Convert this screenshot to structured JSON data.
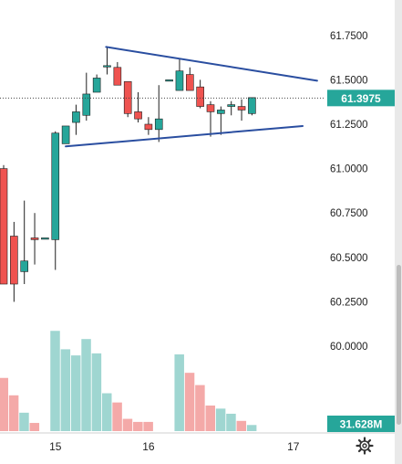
{
  "chart_data": {
    "type": "candlestick",
    "price_axis": {
      "ticks": [
        "61.7500",
        "61.5000",
        "61.2500",
        "61.0000",
        "60.7500",
        "60.5000",
        "60.2500",
        "60.0000"
      ],
      "range": [
        59.81,
        61.79
      ]
    },
    "time_axis": {
      "labels": [
        {
          "text": "15",
          "bar": 5
        },
        {
          "text": "16",
          "bar": 14
        },
        {
          "text": "17",
          "bar": 28
        }
      ]
    },
    "last_price": {
      "text": "61.3975",
      "value": 61.3975,
      "color": "#26a69a"
    },
    "volume_badge": {
      "text": "31.628M",
      "color": "#26a69a"
    },
    "candles": [
      {
        "o": 61.0,
        "h": 61.02,
        "l": 60.35,
        "c": 60.35
      },
      {
        "o": 60.62,
        "h": 60.7,
        "l": 60.25,
        "c": 60.35
      },
      {
        "o": 60.42,
        "h": 60.82,
        "l": 60.35,
        "c": 60.48
      },
      {
        "o": 60.61,
        "h": 60.75,
        "l": 60.46,
        "c": 60.6
      },
      {
        "o": 60.61,
        "h": 60.61,
        "l": 60.61,
        "c": 60.61
      },
      {
        "o": 60.6,
        "h": 61.21,
        "l": 60.43,
        "c": 61.2
      },
      {
        "o": 61.14,
        "h": 61.24,
        "l": 61.14,
        "c": 61.24
      },
      {
        "o": 61.26,
        "h": 61.36,
        "l": 61.19,
        "c": 61.32
      },
      {
        "o": 61.3,
        "h": 61.54,
        "l": 61.27,
        "c": 61.42
      },
      {
        "o": 61.43,
        "h": 61.53,
        "l": 61.43,
        "c": 61.51
      },
      {
        "o": 61.58,
        "h": 61.68,
        "l": 61.53,
        "c": 61.58
      },
      {
        "o": 61.57,
        "h": 61.6,
        "l": 61.48,
        "c": 61.47
      },
      {
        "o": 61.49,
        "h": 61.49,
        "l": 61.29,
        "c": 61.31
      },
      {
        "o": 61.32,
        "h": 61.43,
        "l": 61.26,
        "c": 61.28
      },
      {
        "o": 61.25,
        "h": 61.29,
        "l": 61.19,
        "c": 61.22
      },
      {
        "o": 61.22,
        "h": 61.47,
        "l": 61.15,
        "c": 61.28
      },
      {
        "o": 61.5,
        "h": 61.5,
        "l": 61.5,
        "c": 61.5
      },
      {
        "o": 61.44,
        "h": 61.62,
        "l": 61.44,
        "c": 61.55
      },
      {
        "o": 61.53,
        "h": 61.57,
        "l": 61.44,
        "c": 61.44
      },
      {
        "o": 61.46,
        "h": 61.5,
        "l": 61.34,
        "c": 61.35
      },
      {
        "o": 61.36,
        "h": 61.38,
        "l": 61.18,
        "c": 61.32
      },
      {
        "o": 61.31,
        "h": 61.35,
        "l": 61.19,
        "c": 61.33
      },
      {
        "o": 61.35,
        "h": 61.38,
        "l": 61.3,
        "c": 61.36
      },
      {
        "o": 61.35,
        "h": 61.39,
        "l": 61.27,
        "c": 61.33
      },
      {
        "o": 61.31,
        "h": 61.4,
        "l": 61.3,
        "c": 61.4
      }
    ],
    "volume_range": [
      0,
      1.0
    ],
    "volumes": [
      0.52,
      0.35,
      0.18,
      0.08,
      0.0,
      0.98,
      0.8,
      0.74,
      0.9,
      0.76,
      0.37,
      0.28,
      0.12,
      0.09,
      0.09,
      0.0,
      0.0,
      0.75,
      0.57,
      0.45,
      0.25,
      0.22,
      0.17,
      0.1,
      0.06
    ],
    "trendlines": [
      {
        "from": {
          "bar": 9.9,
          "price": 61.685
        },
        "to": {
          "bar": 30.3,
          "price": 61.495
        },
        "color": "#2a4ea0"
      },
      {
        "from": {
          "bar": 6.0,
          "price": 61.125
        },
        "to": {
          "bar": 28.9,
          "price": 61.24
        },
        "color": "#2a4ea0"
      }
    ],
    "colors": {
      "up": "#26a69a",
      "down": "#ef5350",
      "up_volume": "#9fd6d1",
      "down_volume": "#f4a9a8"
    }
  },
  "controls": {
    "settings_icon": "gear-icon"
  }
}
